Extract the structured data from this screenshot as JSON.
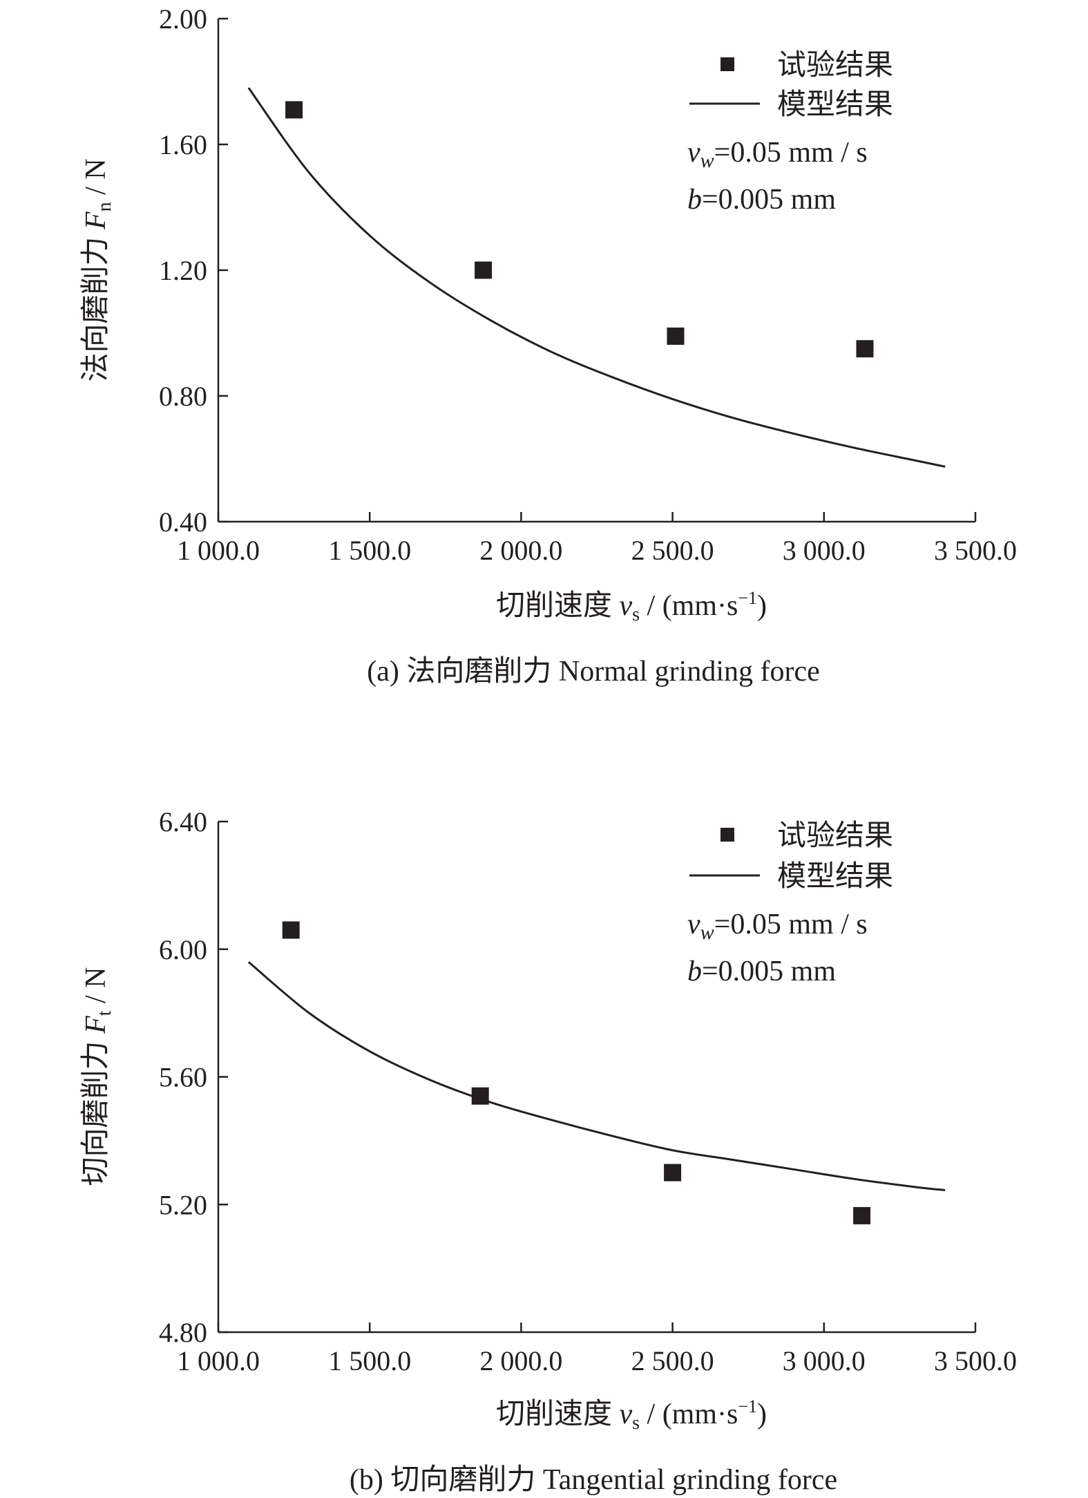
{
  "chart_data": [
    {
      "type": "scatter",
      "caption": "(a) 法向磨削力 Normal grinding force",
      "ylabel_prefix": "法向磨削力 ",
      "ylabel_var": "F",
      "ylabel_sub": "n",
      "ylabel_unit": " / N",
      "xlabel_prefix": "切削速度 ",
      "xlabel_var": "v",
      "xlabel_sub": "s",
      "xlabel_unit_pre": " / (mm·s",
      "xlabel_unit_sup": "−1",
      "xlabel_unit_post": ")",
      "xlim": [
        1000,
        3500
      ],
      "ylim": [
        0.4,
        2.0
      ],
      "x_ticks": [
        1000,
        1500,
        2000,
        2500,
        3000,
        3500
      ],
      "x_tick_labels": [
        "1 000.0",
        "1 500.0",
        "2 000.0",
        "2 500.0",
        "3 000.0",
        "3 500.0"
      ],
      "y_ticks": [
        0.4,
        0.8,
        1.2,
        1.6,
        2.0
      ],
      "y_tick_labels": [
        "0.40",
        "0.80",
        "1.20",
        "1.60",
        "2.00"
      ],
      "legend": {
        "position": "top-right",
        "markers_label": "试验结果",
        "line_label": "模型结果"
      },
      "params": [
        {
          "var": "v",
          "sub": "w",
          "rest": "=0.05 mm / s"
        },
        {
          "var": "b",
          "sub": "",
          "rest": "=0.005 mm"
        }
      ],
      "series": [
        {
          "name": "试验结果",
          "kind": "markers",
          "x": [
            1250,
            1875,
            2510,
            3135
          ],
          "y": [
            1.71,
            1.2,
            0.99,
            0.95
          ]
        },
        {
          "name": "模型结果",
          "kind": "line",
          "x": [
            1100,
            1300,
            1500,
            1700,
            1900,
            2100,
            2300,
            2500,
            2700,
            2900,
            3100,
            3300,
            3400
          ],
          "y": [
            1.78,
            1.51,
            1.31,
            1.16,
            1.04,
            0.94,
            0.86,
            0.79,
            0.73,
            0.68,
            0.635,
            0.595,
            0.575
          ]
        }
      ]
    },
    {
      "type": "scatter",
      "caption": "(b) 切向磨削力 Tangential grinding force",
      "ylabel_prefix": "切向磨削力 ",
      "ylabel_var": "F",
      "ylabel_sub": "t",
      "ylabel_unit": " / N",
      "xlabel_prefix": "切削速度 ",
      "xlabel_var": "v",
      "xlabel_sub": "s",
      "xlabel_unit_pre": " / (mm·s",
      "xlabel_unit_sup": "−1",
      "xlabel_unit_post": ")",
      "xlim": [
        1000,
        3500
      ],
      "ylim": [
        4.8,
        6.4
      ],
      "x_ticks": [
        1000,
        1500,
        2000,
        2500,
        3000,
        3500
      ],
      "x_tick_labels": [
        "1 000.0",
        "1 500.0",
        "2 000.0",
        "2 500.0",
        "3 000.0",
        "3 500.0"
      ],
      "y_ticks": [
        4.8,
        5.2,
        5.6,
        6.0,
        6.4
      ],
      "y_tick_labels": [
        "4.80",
        "5.20",
        "5.60",
        "6.00",
        "6.40"
      ],
      "legend": {
        "position": "top-right",
        "markers_label": "试验结果",
        "line_label": "模型结果"
      },
      "params": [
        {
          "var": "v",
          "sub": "w",
          "rest": "=0.05 mm / s"
        },
        {
          "var": "b",
          "sub": "",
          "rest": "=0.005 mm"
        }
      ],
      "series": [
        {
          "name": "试验结果",
          "kind": "markers",
          "x": [
            1240,
            1865,
            2500,
            3125
          ],
          "y": [
            6.06,
            5.54,
            5.3,
            5.165
          ]
        },
        {
          "name": "模型结果",
          "kind": "line",
          "x": [
            1100,
            1300,
            1500,
            1700,
            1900,
            2100,
            2300,
            2500,
            2700,
            2900,
            3100,
            3300,
            3400
          ],
          "y": [
            5.96,
            5.8,
            5.68,
            5.59,
            5.52,
            5.465,
            5.415,
            5.37,
            5.34,
            5.31,
            5.28,
            5.255,
            5.245
          ]
        }
      ]
    }
  ]
}
